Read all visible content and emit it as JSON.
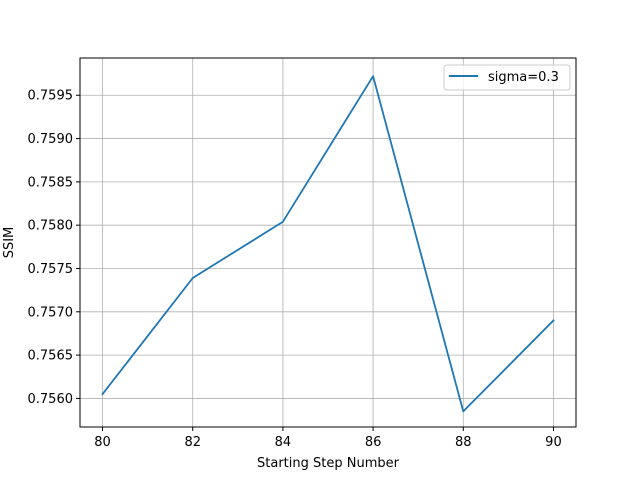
{
  "chart_data": {
    "type": "line",
    "title": "",
    "xlabel": "Starting Step Number",
    "ylabel": "SSIM",
    "xlim": [
      79.5,
      90.5
    ],
    "ylim": [
      0.75567,
      0.75993
    ],
    "x_ticks": [
      80,
      82,
      84,
      86,
      88,
      90
    ],
    "x_tick_labels": [
      "80",
      "82",
      "84",
      "86",
      "88",
      "90"
    ],
    "y_ticks": [
      0.756,
      0.7565,
      0.757,
      0.7575,
      0.758,
      0.7585,
      0.759,
      0.7595
    ],
    "y_tick_labels": [
      "0.7560",
      "0.7565",
      "0.7570",
      "0.7575",
      "0.7580",
      "0.7585",
      "0.7590",
      "0.7595"
    ],
    "grid": true,
    "legend_position": "top-right",
    "series": [
      {
        "name": "sigma=0.3",
        "color": "#1f77b4",
        "x": [
          80,
          82,
          84,
          86,
          88,
          90
        ],
        "y": [
          0.75605,
          0.75739,
          0.75804,
          0.75972,
          0.75585,
          0.7569
        ]
      }
    ]
  }
}
